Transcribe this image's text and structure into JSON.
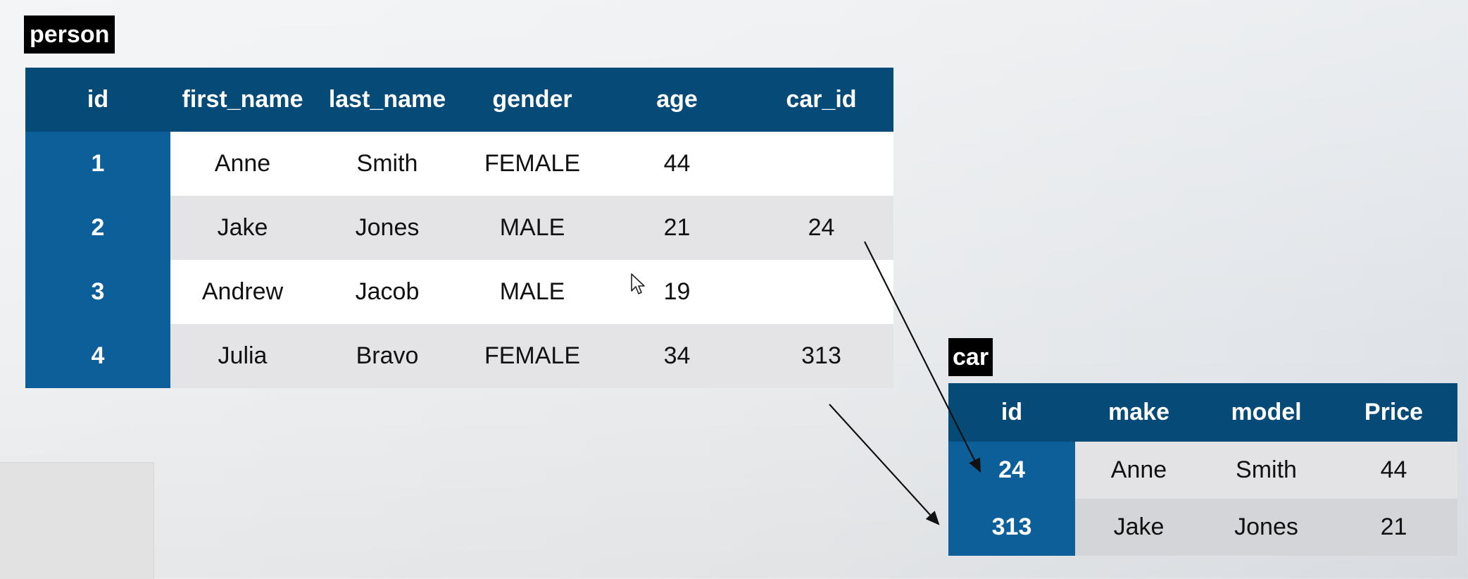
{
  "person": {
    "label": "person",
    "columns": [
      "id",
      "first_name",
      "last_name",
      "gender",
      "age",
      "car_id"
    ],
    "rows": [
      [
        "1",
        "Anne",
        "Smith",
        "FEMALE",
        "44",
        ""
      ],
      [
        "2",
        "Jake",
        "Jones",
        "MALE",
        "21",
        "24"
      ],
      [
        "3",
        "Andrew",
        "Jacob",
        "MALE",
        "19",
        ""
      ],
      [
        "4",
        "Julia",
        "Bravo",
        "FEMALE",
        "34",
        "313"
      ]
    ]
  },
  "car": {
    "label": "car",
    "columns": [
      "id",
      "make",
      "model",
      "Price"
    ],
    "rows": [
      [
        "24",
        "Anne",
        "Smith",
        "44"
      ],
      [
        "313",
        "Jake",
        "Jones",
        "21"
      ]
    ]
  },
  "colors": {
    "header": "#064a78",
    "id_column": "#0d5f9a",
    "row_light": "#ffffff",
    "row_grey": "#e4e4e6",
    "label_bg": "#000000"
  }
}
